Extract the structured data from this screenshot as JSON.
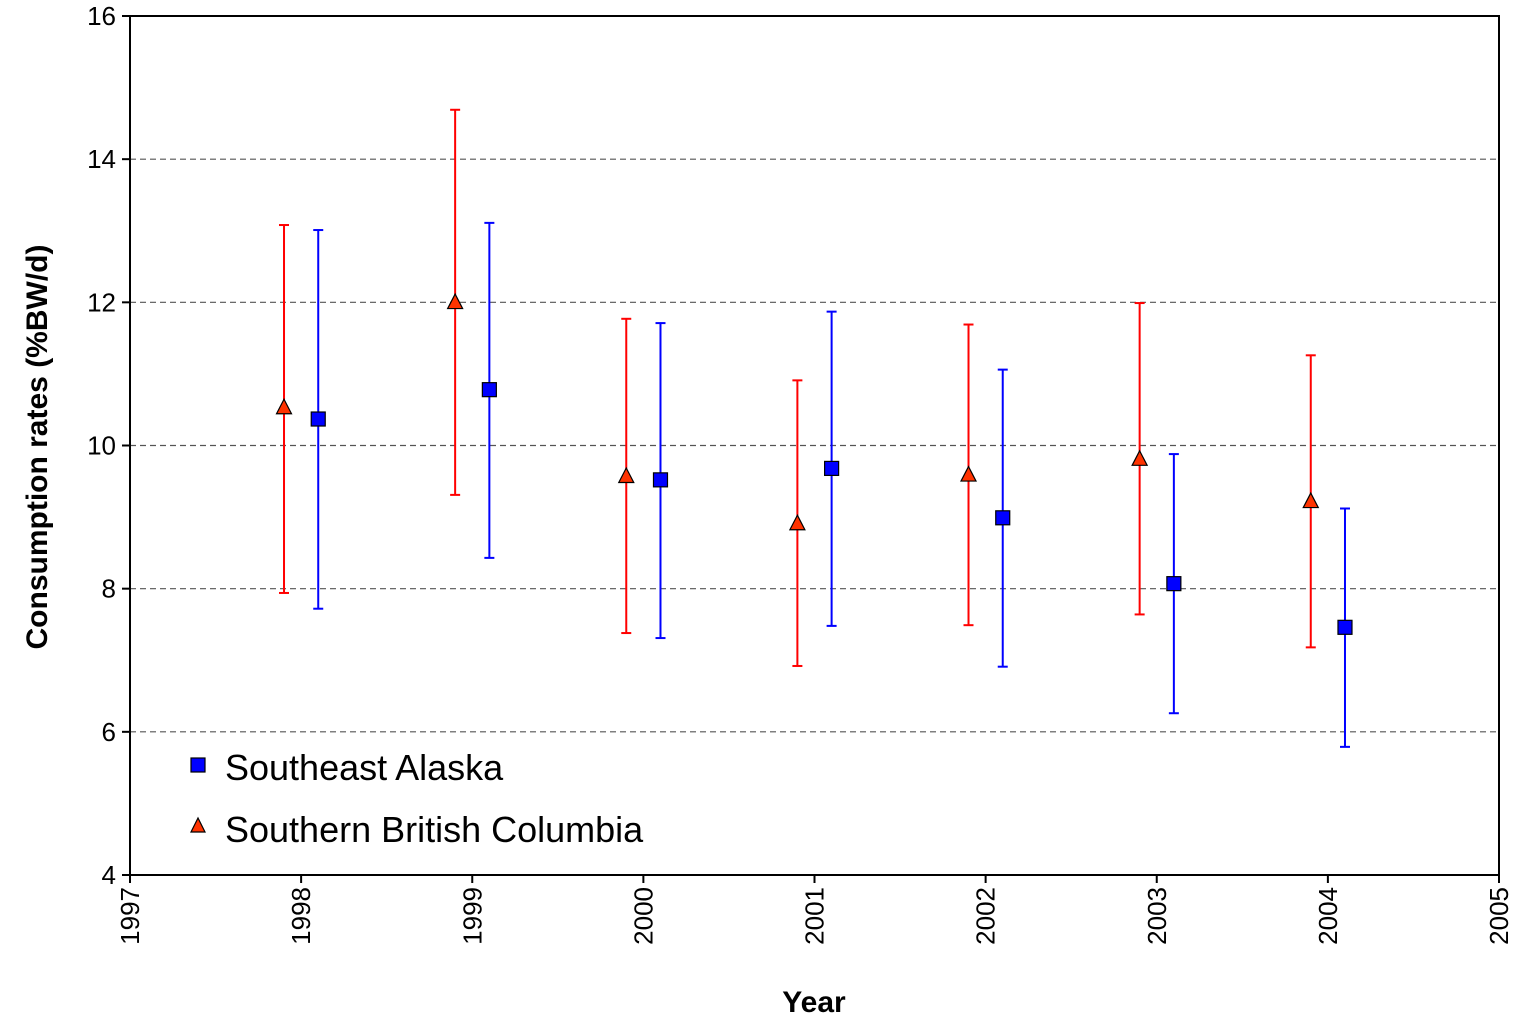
{
  "chart_data": {
    "type": "scatter",
    "xlabel": "Year",
    "ylabel": "Consumption rates (%BW/d)",
    "xlim": [
      1997,
      2005
    ],
    "ylim": [
      4,
      16
    ],
    "x_ticks": [
      "1997",
      "1998",
      "1999",
      "2000",
      "2001",
      "2002",
      "2003",
      "2004",
      "2005"
    ],
    "y_ticks": [
      "4",
      "6",
      "8",
      "10",
      "12",
      "14",
      "16"
    ],
    "grid": "horizontal dashed",
    "legend_position": "bottom-left",
    "series": [
      {
        "name": "Southeast Alaska",
        "marker": "square",
        "color": "#0000FF",
        "errorbar_color": "#0000FF",
        "x": [
          1998.1,
          1999.1,
          2000.1,
          2001.1,
          2002.1,
          2003.1,
          2004.1
        ],
        "y": [
          10.37,
          10.78,
          9.52,
          9.68,
          8.99,
          8.07,
          7.46
        ],
        "lower": [
          7.72,
          8.43,
          7.31,
          7.48,
          6.91,
          6.26,
          5.79
        ],
        "upper": [
          13.01,
          13.11,
          11.71,
          11.87,
          11.06,
          9.88,
          9.12
        ]
      },
      {
        "name": "Southern British Columbia",
        "marker": "triangle",
        "color": "#FF3300",
        "errorbar_color": "#FF0000",
        "x": [
          1997.9,
          1998.9,
          1999.9,
          2000.9,
          2001.9,
          2002.9,
          2003.9
        ],
        "y": [
          10.52,
          11.99,
          9.56,
          8.9,
          9.58,
          9.8,
          9.21
        ],
        "lower": [
          7.94,
          9.31,
          7.38,
          6.92,
          7.49,
          7.64,
          7.18
        ],
        "upper": [
          13.08,
          14.69,
          11.77,
          10.91,
          11.69,
          11.99,
          11.26
        ]
      }
    ]
  }
}
